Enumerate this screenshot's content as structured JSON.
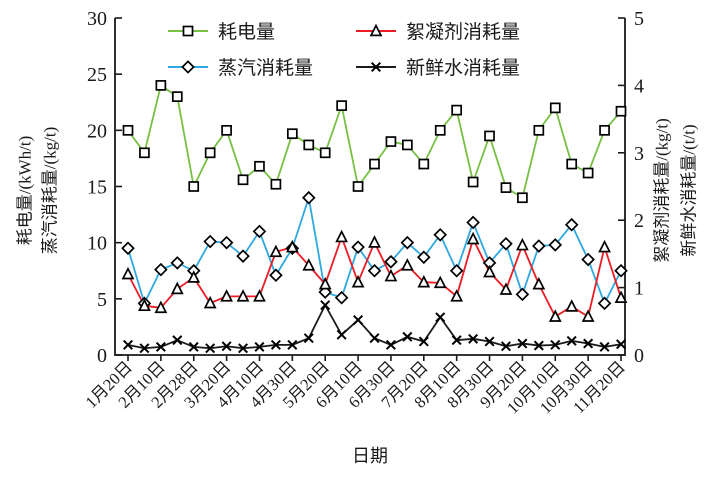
{
  "figure": {
    "x_axis_title": "日期",
    "left_axis_title_outer": "耗电量/(kWh/t)",
    "left_axis_title_inner": "蒸汽消耗量/(kg/t)",
    "right_axis_title_inner": "絮凝剂消耗量/(kg/t)",
    "right_axis_title_outer": "新鲜水消耗量/(t/t)"
  },
  "chart_data": {
    "type": "line",
    "title": "",
    "xlabel": "日期",
    "left_ylabel": "耗电量/(kWh/t) 蒸汽消耗量/(kg/t)",
    "right_ylabel": "絮凝剂消耗量/(kg/t) 新鲜水消耗量/(t/t)",
    "left_ylim": [
      0,
      30
    ],
    "right_ylim": [
      0,
      5
    ],
    "left_ticks": [
      0,
      5,
      10,
      15,
      20,
      25,
      30
    ],
    "right_ticks": [
      0,
      1,
      2,
      3,
      4,
      5
    ],
    "grid": false,
    "legend_position": "top-inside",
    "categories": [
      "1月20日",
      "2月10日",
      "2月28日",
      "3月20日",
      "4月10日",
      "4月30日",
      "5月20日",
      "6月10日",
      "6月30日",
      "7月20日",
      "8月10日",
      "8月30日",
      "9月20日",
      "10月10日",
      "10月30日",
      "11月20日"
    ],
    "x_tick_every": 2,
    "n_points": 31,
    "legend_layout": [
      [
        0,
        2
      ],
      [
        1,
        3
      ]
    ],
    "series": [
      {
        "name": "耗电量",
        "axis": "left",
        "unit": "kWh/t",
        "color": "#77C043",
        "marker": "square",
        "values": [
          20.0,
          18.0,
          24.0,
          23.0,
          15.0,
          18.0,
          20.0,
          15.6,
          16.8,
          15.2,
          19.7,
          18.7,
          18.0,
          22.2,
          15.0,
          17.0,
          19.0,
          18.7,
          17.0,
          20.0,
          21.8,
          15.4,
          19.5,
          14.9,
          14.0,
          20.0,
          22.0,
          17.0,
          16.2,
          20.0,
          21.7
        ]
      },
      {
        "name": "蒸汽消耗量",
        "axis": "left",
        "unit": "kg/t",
        "color": "#2EA8E0",
        "marker": "diamond",
        "values": [
          9.5,
          4.6,
          7.6,
          8.2,
          7.5,
          10.1,
          10.0,
          8.8,
          11.0,
          7.1,
          9.5,
          14.0,
          5.6,
          5.1,
          9.6,
          7.5,
          8.3,
          10.0,
          8.7,
          10.7,
          7.5,
          11.8,
          8.2,
          9.9,
          5.4,
          9.7,
          9.8,
          11.6,
          8.5,
          4.6,
          7.5
        ]
      },
      {
        "name": "絮凝剂消耗量",
        "axis": "right",
        "unit": "kg/t",
        "color": "#EC1C24",
        "marker": "triangle",
        "values": [
          1.2,
          0.73,
          0.7,
          0.98,
          1.15,
          0.77,
          0.87,
          0.87,
          0.87,
          1.53,
          1.6,
          1.33,
          1.05,
          1.75,
          1.08,
          1.67,
          1.17,
          1.33,
          1.08,
          1.07,
          0.87,
          1.72,
          1.23,
          0.97,
          1.63,
          1.05,
          0.57,
          0.72,
          0.57,
          1.6,
          0.85
        ]
      },
      {
        "name": "新鲜水消耗量",
        "axis": "right",
        "unit": "t/t",
        "color": "#1a1a1a",
        "marker": "x",
        "values": [
          0.15,
          0.1,
          0.12,
          0.22,
          0.12,
          0.1,
          0.13,
          0.1,
          0.12,
          0.15,
          0.15,
          0.25,
          0.74,
          0.3,
          0.52,
          0.25,
          0.15,
          0.27,
          0.2,
          0.56,
          0.22,
          0.24,
          0.2,
          0.13,
          0.17,
          0.14,
          0.15,
          0.21,
          0.17,
          0.12,
          0.16
        ]
      }
    ]
  }
}
